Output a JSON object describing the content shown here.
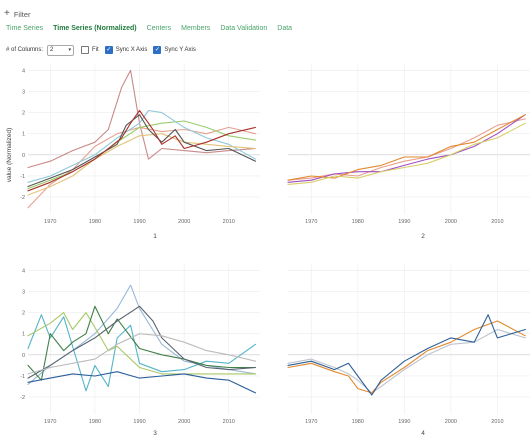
{
  "filter": {
    "label": "Filter"
  },
  "tabs": [
    {
      "label": "Time Series",
      "active": false
    },
    {
      "label": "Time Series (Normalized)",
      "active": true
    },
    {
      "label": "Centers",
      "active": false
    },
    {
      "label": "Members",
      "active": false
    },
    {
      "label": "Data Validation",
      "active": false
    },
    {
      "label": "Data",
      "active": false
    }
  ],
  "controls": {
    "columns_label": "# of Columns:",
    "columns_value": "2",
    "fit_label": "Fit",
    "fit_checked": false,
    "sync_x_label": "Sync X Axis",
    "sync_x_checked": true,
    "sync_y_label": "Sync Y Axis",
    "sync_y_checked": true
  },
  "colors": {
    "accent": "#1f7a3c",
    "tab": "#4aa46a",
    "checkbox": "#2f6ec7"
  },
  "chart_data": [
    {
      "type": "line",
      "title": "1",
      "ylabel": "value (Normalized)",
      "xlim": [
        1965,
        2017
      ],
      "ylim": [
        -2.8,
        4.3
      ],
      "xticks": [
        1970,
        1980,
        1990,
        2000,
        2010
      ],
      "yticks": [
        -2,
        -1,
        0,
        1,
        2,
        3,
        4
      ],
      "series": [
        {
          "color": "#c98a8a",
          "x": [
            1965,
            1970,
            1975,
            1980,
            1983,
            1986,
            1988,
            1990,
            1992,
            1995,
            2000,
            2005,
            2010,
            2016
          ],
          "y": [
            -0.6,
            -0.3,
            0.2,
            0.6,
            1.2,
            3.2,
            4.0,
            1.5,
            -0.2,
            0.3,
            0.2,
            0.1,
            0.2,
            0.3
          ]
        },
        {
          "color": "#e8a090",
          "x": [
            1965,
            1970,
            1975,
            1980,
            1985,
            1990,
            1995,
            2000,
            2005,
            2010,
            2016
          ],
          "y": [
            -2.5,
            -1.4,
            -0.7,
            0.4,
            1.0,
            1.3,
            1.1,
            1.2,
            1.0,
            1.3,
            1.0
          ]
        },
        {
          "color": "#9acd6a",
          "x": [
            1965,
            1970,
            1975,
            1980,
            1985,
            1990,
            1995,
            2000,
            2005,
            2010,
            2016
          ],
          "y": [
            -1.6,
            -1.2,
            -0.8,
            -0.2,
            0.6,
            1.3,
            1.5,
            1.6,
            1.3,
            0.9,
            0.7
          ]
        },
        {
          "color": "#8ec9d9",
          "x": [
            1965,
            1970,
            1975,
            1980,
            1985,
            1990,
            1992,
            1995,
            2000,
            2005,
            2010,
            2016
          ],
          "y": [
            -1.3,
            -1.0,
            -0.5,
            0.0,
            0.8,
            1.5,
            2.1,
            2.0,
            1.3,
            0.8,
            0.5,
            -0.2
          ]
        },
        {
          "color": "#e3c27a",
          "x": [
            1965,
            1970,
            1975,
            1980,
            1985,
            1990,
            1995,
            2000,
            2005,
            2010,
            2016
          ],
          "y": [
            -1.9,
            -1.5,
            -1.0,
            -0.2,
            0.4,
            0.9,
            1.0,
            0.6,
            0.5,
            0.4,
            0.3
          ]
        },
        {
          "color": "#555555",
          "x": [
            1965,
            1970,
            1975,
            1980,
            1985,
            1987,
            1990,
            1992,
            1995,
            1998,
            2000,
            2005,
            2010,
            2016
          ],
          "y": [
            -1.5,
            -1.1,
            -0.7,
            -0.1,
            0.5,
            1.4,
            1.9,
            1.2,
            0.6,
            1.2,
            0.6,
            0.2,
            0.3,
            -0.3
          ]
        },
        {
          "color": "#a8322a",
          "x": [
            1965,
            1970,
            1975,
            1980,
            1983,
            1986,
            1988,
            1990,
            1993,
            1995,
            1998,
            2000,
            2005,
            2010,
            2016
          ],
          "y": [
            -1.7,
            -1.3,
            -0.8,
            -0.2,
            0.3,
            0.8,
            1.5,
            2.1,
            1.2,
            0.5,
            0.9,
            0.3,
            0.6,
            1.0,
            1.3
          ]
        }
      ]
    },
    {
      "type": "line",
      "title": "2",
      "xlim": [
        1965,
        2017
      ],
      "ylim": [
        -2.8,
        4.3
      ],
      "xticks": [
        1970,
        1980,
        1990,
        2000,
        2010
      ],
      "yticks": [
        -2,
        -1,
        0,
        1,
        2,
        3,
        4
      ],
      "series": [
        {
          "color": "#e8a090",
          "x": [
            1965,
            1970,
            1975,
            1980,
            1985,
            1990,
            1995,
            2000,
            2005,
            2010,
            2016
          ],
          "y": [
            -1.2,
            -1.1,
            -0.9,
            -1.0,
            -0.6,
            -0.3,
            -0.1,
            0.3,
            0.8,
            1.4,
            1.7
          ]
        },
        {
          "color": "#a04fc4",
          "x": [
            1965,
            1970,
            1975,
            1980,
            1985,
            1990,
            1995,
            2000,
            2005,
            2010,
            2016
          ],
          "y": [
            -1.3,
            -1.2,
            -0.9,
            -0.8,
            -0.8,
            -0.5,
            -0.2,
            0.0,
            0.4,
            1.0,
            1.9
          ]
        },
        {
          "color": "#e2892e",
          "x": [
            1965,
            1970,
            1975,
            1980,
            1985,
            1990,
            1995,
            2000,
            2005,
            2010,
            2016
          ],
          "y": [
            -1.2,
            -1.0,
            -1.1,
            -0.7,
            -0.5,
            -0.1,
            -0.1,
            0.4,
            0.6,
            1.2,
            1.9
          ]
        },
        {
          "color": "#d7cf6a",
          "x": [
            1965,
            1970,
            1975,
            1980,
            1985,
            1990,
            1995,
            2000,
            2005,
            2010,
            2016
          ],
          "y": [
            -1.4,
            -1.3,
            -1.0,
            -1.1,
            -0.8,
            -0.6,
            -0.4,
            0.0,
            0.5,
            0.8,
            1.5
          ]
        }
      ]
    },
    {
      "type": "line",
      "title": "3",
      "xlim": [
        1965,
        2017
      ],
      "ylim": [
        -2.8,
        4.3
      ],
      "xticks": [
        1970,
        1980,
        1990,
        2000,
        2010
      ],
      "yticks": [
        -2,
        -1,
        0,
        1,
        2,
        3,
        4
      ],
      "series": [
        {
          "color": "#9ab8d8",
          "x": [
            1965,
            1970,
            1975,
            1980,
            1985,
            1988,
            1990,
            1995,
            2000,
            2005,
            2010,
            2016
          ],
          "y": [
            -1.4,
            -0.5,
            0.2,
            1.0,
            2.2,
            3.3,
            2.2,
            0.5,
            -0.3,
            -0.5,
            -0.7,
            -0.9
          ]
        },
        {
          "color": "#54b4c9",
          "x": [
            1965,
            1968,
            1970,
            1973,
            1975,
            1978,
            1980,
            1983,
            1985,
            1988,
            1990,
            1995,
            2000,
            2005,
            2010,
            2016
          ],
          "y": [
            0.3,
            1.9,
            0.8,
            1.8,
            0.4,
            -1.7,
            -0.5,
            -1.5,
            0.8,
            1.4,
            -0.4,
            -0.8,
            -0.7,
            -0.3,
            -0.4,
            0.5
          ]
        },
        {
          "color": "#a6c866",
          "x": [
            1965,
            1970,
            1973,
            1975,
            1978,
            1980,
            1983,
            1985,
            1990,
            1995,
            2000,
            2005,
            2010,
            2016
          ],
          "y": [
            0.9,
            1.5,
            2.0,
            1.2,
            2.0,
            1.3,
            0.2,
            0.4,
            -0.6,
            -0.9,
            -0.9,
            -0.9,
            -0.9,
            -0.9
          ]
        },
        {
          "color": "#3f7f48",
          "x": [
            1965,
            1968,
            1970,
            1973,
            1975,
            1978,
            1980,
            1983,
            1985,
            1990,
            1995,
            2000,
            2005,
            2010,
            2016
          ],
          "y": [
            -0.5,
            -1.2,
            1.0,
            0.2,
            0.6,
            1.0,
            2.3,
            1.0,
            1.7,
            0.3,
            0.0,
            -0.2,
            -0.5,
            -0.6,
            -0.6
          ]
        },
        {
          "color": "#5a6470",
          "x": [
            1965,
            1970,
            1975,
            1980,
            1985,
            1990,
            1993,
            1995,
            2000,
            2005,
            2010,
            2016
          ],
          "y": [
            -1.1,
            -0.5,
            0.2,
            0.8,
            1.6,
            2.3,
            1.6,
            0.8,
            -0.2,
            -0.6,
            -0.7,
            -0.6
          ]
        },
        {
          "color": "#bbbbbb",
          "x": [
            1965,
            1970,
            1975,
            1980,
            1985,
            1990,
            1995,
            2000,
            2005,
            2010,
            2016
          ],
          "y": [
            -0.9,
            -0.6,
            -0.4,
            -0.2,
            0.5,
            1.0,
            0.9,
            0.6,
            0.2,
            0.0,
            -0.3
          ]
        },
        {
          "color": "#2b5d9c",
          "x": [
            1965,
            1970,
            1975,
            1980,
            1985,
            1990,
            1995,
            2000,
            2005,
            2010,
            2016
          ],
          "y": [
            -1.3,
            -1.1,
            -0.9,
            -1.0,
            -0.8,
            -1.1,
            -1.0,
            -0.9,
            -1.1,
            -1.2,
            -1.8
          ]
        }
      ]
    },
    {
      "type": "line",
      "title": "4",
      "xlim": [
        1965,
        2017
      ],
      "ylim": [
        -2.8,
        4.3
      ],
      "xticks": [
        1970,
        1980,
        1990,
        2000,
        2010
      ],
      "yticks": [
        -2,
        -1,
        0,
        1,
        2,
        3,
        4
      ],
      "series": [
        {
          "color": "#bcc3cf",
          "x": [
            1965,
            1970,
            1975,
            1978,
            1980,
            1983,
            1985,
            1990,
            1995,
            2000,
            2005,
            2010,
            2016
          ],
          "y": [
            -0.4,
            -0.2,
            -0.6,
            -0.9,
            -1.2,
            -1.8,
            -1.5,
            -0.7,
            0.0,
            0.5,
            0.6,
            1.2,
            0.8
          ]
        },
        {
          "color": "#e2892e",
          "x": [
            1965,
            1970,
            1975,
            1978,
            1980,
            1983,
            1985,
            1990,
            1995,
            2000,
            2005,
            2010,
            2016
          ],
          "y": [
            -0.6,
            -0.4,
            -0.8,
            -1.0,
            -1.6,
            -1.8,
            -1.3,
            -0.6,
            0.2,
            0.6,
            1.2,
            1.6,
            0.9
          ]
        },
        {
          "color": "#2e5f97",
          "x": [
            1965,
            1970,
            1975,
            1978,
            1980,
            1983,
            1985,
            1990,
            1995,
            2000,
            2005,
            2008,
            2010,
            2016
          ],
          "y": [
            -0.5,
            -0.3,
            -0.7,
            -0.4,
            -1.0,
            -1.9,
            -1.2,
            -0.3,
            0.3,
            0.8,
            0.6,
            1.9,
            0.8,
            1.2
          ]
        }
      ]
    }
  ]
}
